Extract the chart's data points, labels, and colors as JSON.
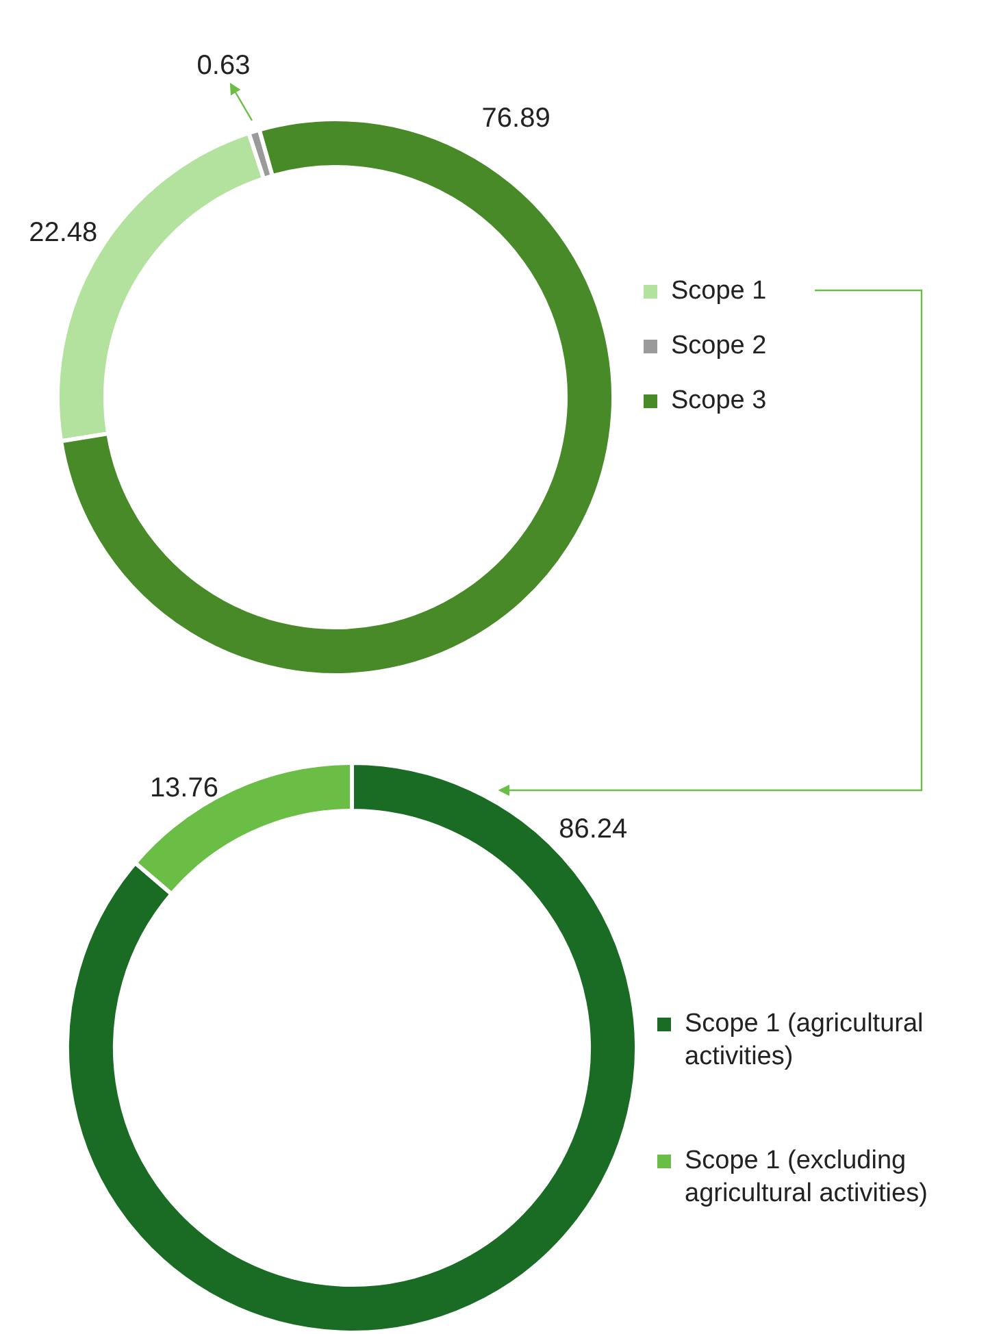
{
  "chart_data": [
    {
      "type": "donut",
      "categories": [
        "Scope 1",
        "Scope 2",
        "Scope 3"
      ],
      "values": [
        22.48,
        0.63,
        76.89
      ],
      "colors": [
        "#b3e29e",
        "#9a9a9a",
        "#478a27"
      ],
      "data_labels": true,
      "legend": "right"
    },
    {
      "type": "donut",
      "categories": [
        "Scope 1 (agricultural activities)",
        "Scope 1 (excluding agricultural activities)"
      ],
      "values": [
        86.24,
        13.76
      ],
      "colors": [
        "#1a6b24",
        "#6abd45"
      ],
      "data_labels": true,
      "legend": "right"
    }
  ]
}
